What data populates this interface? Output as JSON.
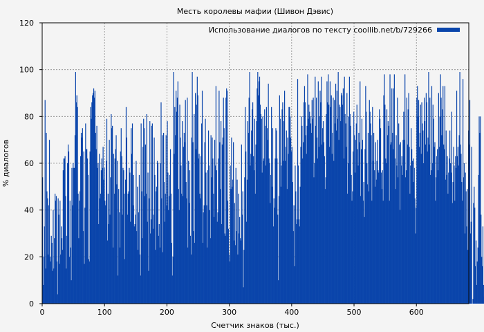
{
  "chart_data": {
    "type": "bar",
    "title": "Месть королевы мафии (Шивон Дэвис)",
    "xlabel": "Счетчик знаков (тыс.)",
    "ylabel": "% диалогов",
    "xlim": [
      0,
      684
    ],
    "ylim": [
      0,
      120
    ],
    "xticks": [
      0,
      100,
      200,
      300,
      400,
      500,
      600
    ],
    "yticks": [
      0,
      20,
      40,
      60,
      80,
      100,
      120
    ],
    "grid": true,
    "legend_position": "top-right",
    "bar_width": 1,
    "series": [
      {
        "name": "Использование диалогов по тексту coollib.net/b/729266",
        "color": "#0a45ab",
        "x_start": 0,
        "values": [
          54,
          8,
          20,
          33,
          87,
          15,
          73,
          48,
          45,
          21,
          42,
          70,
          20,
          18,
          29,
          26,
          14,
          40,
          15,
          28,
          47,
          44,
          46,
          18,
          4,
          45,
          38,
          17,
          44,
          21,
          33,
          28,
          23,
          57,
          62,
          62,
          63,
          46,
          15,
          29,
          60,
          68,
          65,
          20,
          44,
          24,
          10,
          58,
          42,
          60,
          58,
          58,
          72,
          99,
          86,
          89,
          84,
          47,
          28,
          44,
          48,
          63,
          73,
          71,
          75,
          31,
          65,
          17,
          41,
          77,
          66,
          66,
          62,
          55,
          19,
          18,
          65,
          84,
          79,
          86,
          89,
          90,
          92,
          88,
          91,
          73,
          66,
          76,
          58,
          60,
          34,
          64,
          45,
          47,
          57,
          62,
          58,
          67,
          53,
          58,
          44,
          42,
          61,
          79,
          27,
          47,
          34,
          70,
          38,
          54,
          81,
          75,
          76,
          24,
          64,
          47,
          62,
          66,
          72,
          51,
          61,
          12,
          49,
          39,
          24,
          65,
          75,
          63,
          38,
          58,
          57,
          47,
          19,
          53,
          84,
          71,
          38,
          47,
          48,
          58,
          56,
          35,
          75,
          64,
          77,
          42,
          55,
          33,
          34,
          38,
          61,
          31,
          50,
          23,
          39,
          55,
          21,
          12,
          77,
          48,
          28,
          67,
          79,
          75,
          46,
          68,
          47,
          81,
          35,
          56,
          14,
          45,
          78,
          30,
          36,
          76,
          77,
          32,
          38,
          71,
          55,
          23,
          48,
          50,
          61,
          60,
          29,
          34,
          24,
          60,
          86,
          45,
          72,
          22,
          73,
          52,
          35,
          47,
          72,
          42,
          78,
          56,
          40,
          46,
          55,
          66,
          47,
          26,
          12,
          20,
          99,
          64,
          84,
          72,
          91,
          82,
          88,
          95,
          49,
          40,
          85,
          71,
          59,
          47,
          78,
          46,
          67,
          73,
          69,
          87,
          52,
          45,
          88,
          24,
          61,
          43,
          57,
          29,
          21,
          71,
          99,
          69,
          31,
          81,
          26,
          90,
          66,
          85,
          97,
          89,
          62,
          64,
          47,
          45,
          63,
          77,
          91,
          26,
          39,
          42,
          69,
          79,
          56,
          42,
          24,
          57,
          74,
          59,
          40,
          28,
          72,
          54,
          71,
          62,
          47,
          37,
          70,
          59,
          93,
          57,
          35,
          39,
          62,
          91,
          69,
          49,
          78,
          34,
          68,
          71,
          88,
          75,
          30,
          29,
          88,
          92,
          91,
          44,
          32,
          21,
          18,
          59,
          49,
          71,
          50,
          53,
          69,
          27,
          43,
          25,
          58,
          31,
          53,
          21,
          47,
          30,
          37,
          28,
          27,
          68,
          38,
          48,
          7,
          23,
          54,
          84,
          65,
          35,
          53,
          78,
          73,
          88,
          99,
          59,
          64,
          74,
          83,
          86,
          63,
          57,
          79,
          47,
          68,
          78,
          92,
          99,
          89,
          95,
          97,
          85,
          81,
          79,
          56,
          80,
          61,
          62,
          83,
          76,
          59,
          84,
          75,
          70,
          94,
          62,
          60,
          43,
          55,
          84,
          50,
          75,
          33,
          45,
          41,
          62,
          75,
          74,
          62,
          38,
          10,
          46,
          89,
          79,
          50,
          59,
          83,
          86,
          61,
          78,
          91,
          61,
          67,
          74,
          49,
          71,
          64,
          84,
          84,
          80,
          71,
          65,
          67,
          52,
          31,
          42,
          16,
          59,
          48,
          34,
          36,
          96,
          59,
          36,
          33,
          50,
          67,
          80,
          76,
          62,
          69,
          86,
          93,
          86,
          72,
          64,
          76,
          98,
          79,
          85,
          82,
          80,
          77,
          73,
          87,
          79,
          88,
          54,
          60,
          97,
          76,
          88,
          71,
          62,
          95,
          67,
          80,
          91,
          86,
          97,
          68,
          75,
          78,
          69,
          63,
          49,
          54,
          81,
          95,
          86,
          98,
          85,
          67,
          95,
          84,
          89,
          64,
          73,
          88,
          61,
          87,
          77,
          94,
          74,
          91,
          79,
          99,
          70,
          85,
          84,
          78,
          90,
          89,
          85,
          92,
          62,
          97,
          81,
          77,
          67,
          90,
          47,
          80,
          60,
          97,
          81,
          76,
          55,
          44,
          48,
          65,
          82,
          72,
          56,
          70,
          77,
          85,
          66,
          59,
          73,
          69,
          95,
          46,
          66,
          79,
          70,
          44,
          52,
          37,
          66,
          93,
          82,
          60,
          51,
          73,
          48,
          87,
          82,
          77,
          72,
          44,
          84,
          61,
          73,
          57,
          50,
          69,
          53,
          61,
          70,
          57,
          56,
          83,
          79,
          75,
          56,
          49,
          57,
          44,
          89,
          98,
          85,
          62,
          60,
          83,
          72,
          78,
          76,
          44,
          98,
          68,
          69,
          92,
          73,
          66,
          92,
          98,
          62,
          49,
          72,
          59,
          88,
          54,
          77,
          68,
          40,
          69,
          59,
          63,
          55,
          70,
          82,
          70,
          98,
          54,
          57,
          88,
          68,
          83,
          90,
          67,
          47,
          59,
          75,
          66,
          61,
          52,
          62,
          58,
          45,
          30,
          41,
          88,
          93,
          80,
          87,
          67,
          73,
          85,
          64,
          86,
          77,
          74,
          60,
          88,
          78,
          68,
          90,
          86,
          65,
          71,
          99,
          68,
          88,
          55,
          57,
          93,
          60,
          85,
          79,
          67,
          69,
          44,
          54,
          63,
          66,
          57,
          90,
          67,
          80,
          98,
          88,
          72,
          83,
          93,
          68,
          66,
          93,
          53,
          74,
          55,
          63,
          47,
          56,
          62,
          74,
          60,
          56,
          82,
          43,
          52,
          67,
          59,
          44,
          63,
          58,
          91,
          63,
          67,
          59,
          72,
          99,
          68,
          64,
          52,
          44,
          96,
          54,
          60,
          30,
          56,
          48,
          33,
          49,
          23,
          74,
          68,
          87,
          30,
          35,
          67,
          0,
          2,
          43,
          50,
          41,
          16,
          27,
          8,
          18,
          24,
          55,
          80,
          73,
          80,
          38,
          20,
          16,
          33,
          8,
          3
        ]
      }
    ]
  }
}
